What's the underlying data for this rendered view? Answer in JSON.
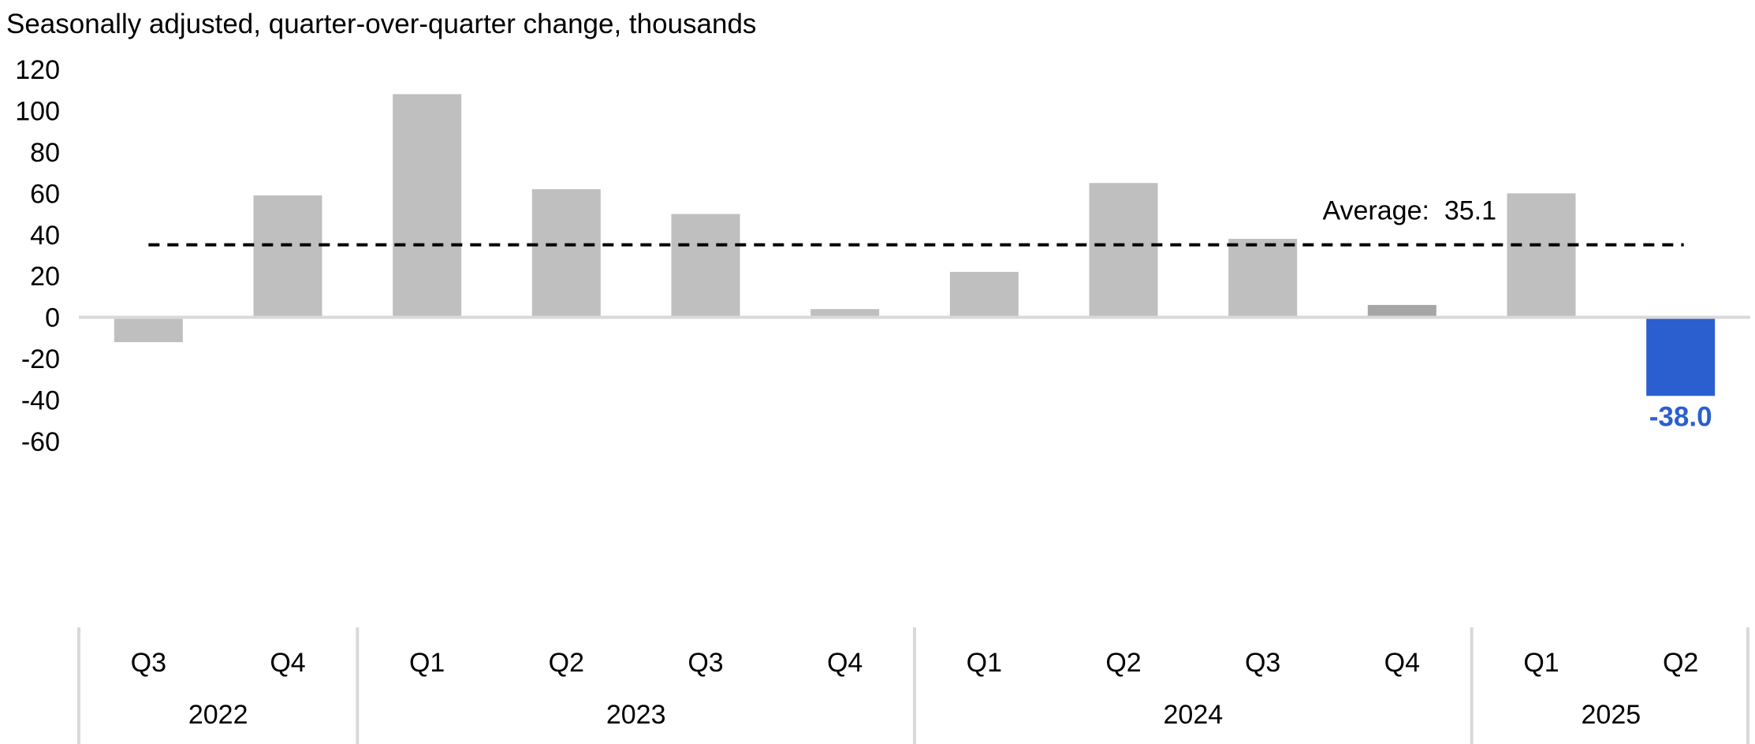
{
  "chart_data": {
    "type": "bar",
    "subtitle": "Seasonally adjusted, quarter-over-quarter change, thousands",
    "categories": [
      "Q3",
      "Q4",
      "Q1",
      "Q2",
      "Q3",
      "Q4",
      "Q1",
      "Q2",
      "Q3",
      "Q4",
      "Q1",
      "Q2"
    ],
    "groups": [
      {
        "label": "2022",
        "count": 2
      },
      {
        "label": "2023",
        "count": 4
      },
      {
        "label": "2024",
        "count": 4
      },
      {
        "label": "2025",
        "count": 2
      }
    ],
    "values": [
      -12,
      59,
      108,
      62,
      50,
      4,
      22,
      65,
      38,
      6,
      60,
      -38
    ],
    "bar_colors": [
      "#bfbfbf",
      "#bfbfbf",
      "#bfbfbf",
      "#bfbfbf",
      "#bfbfbf",
      "#bfbfbf",
      "#bfbfbf",
      "#bfbfbf",
      "#bfbfbf",
      "#a6a6a6",
      "#bfbfbf",
      "#2b5fcf"
    ],
    "ylim": [
      -60,
      120
    ],
    "yticks": [
      120,
      100,
      80,
      60,
      40,
      20,
      0,
      -20,
      -40,
      -60
    ],
    "average": {
      "value": 35.1,
      "label": "Average:  35.1"
    },
    "data_labels": [
      {
        "index": 11,
        "text": "-38.0",
        "color": "#2b5fcf"
      }
    ],
    "grid": false,
    "legend": "none"
  }
}
